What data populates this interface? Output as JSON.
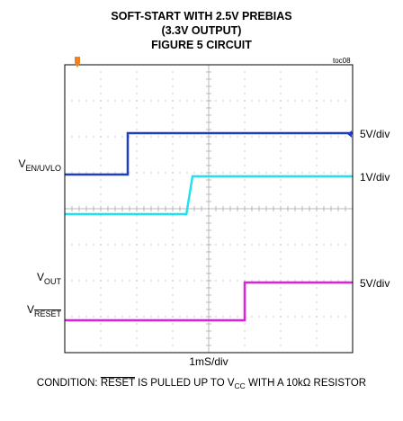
{
  "chart_data": {
    "type": "line",
    "title_lines": [
      "SOFT-START WITH 2.5V PREBIAS",
      "(3.3V OUTPUT)",
      "FIGURE 5 CIRCUIT"
    ],
    "figure_id": "toc08",
    "xlabel": "1mS/div",
    "x_divisions": 8,
    "y_divisions": 8,
    "grid": true,
    "condition": {
      "prefix": "CONDITION: ",
      "reset": "RESET",
      "middle": " IS PULLED UP TO V",
      "sub": "CC",
      "suffix": " WITH A 10kΩ RESISTOR"
    },
    "series": [
      {
        "name": "V",
        "name_sub": "EN/UVLO",
        "scale": "5V/div",
        "color": "#1f3fbf",
        "x": [
          0,
          1.75,
          1.75,
          8
        ],
        "y": [
          4.95,
          4.95,
          6.1,
          6.1
        ]
      },
      {
        "name": "",
        "scale": "1V/div",
        "color": "#22e0ef",
        "x": [
          0,
          3.38,
          3.55,
          8
        ],
        "y": [
          3.85,
          3.85,
          4.9,
          4.9
        ]
      },
      {
        "name": "V",
        "name_sub": "OUT",
        "scale": "5V/div",
        "color": "#e020e0",
        "x": [
          0,
          5.0,
          5.0,
          8
        ],
        "y": [
          0.9,
          0.9,
          1.95,
          1.95
        ]
      }
    ],
    "extra_labels": [
      {
        "name": "V",
        "name_sub": "RESET",
        "overline": true
      }
    ],
    "colors": {
      "background": "#ffffff",
      "grid": "#b8b8b8",
      "frame": "#000000",
      "trigger_marker": "#f08020",
      "ref_marker": "#1f3fbf"
    }
  }
}
